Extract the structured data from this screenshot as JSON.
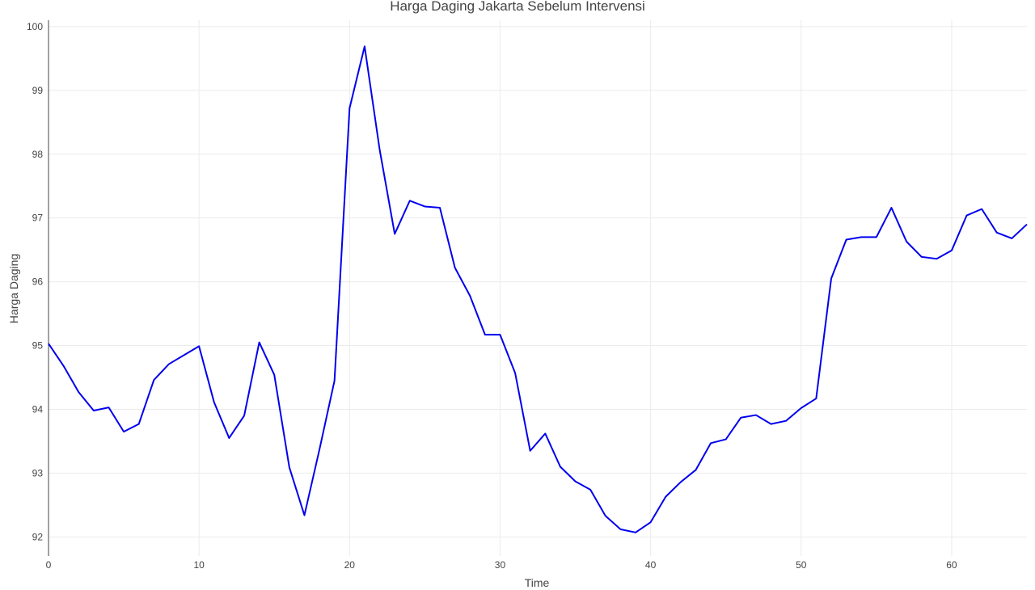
{
  "chart_data": {
    "type": "line",
    "title": "Harga Daging Jakarta Sebelum Intervensi",
    "xlabel": "Time",
    "ylabel": "Harga Daging",
    "xlim": [
      0,
      65
    ],
    "ylim": [
      91.7,
      100.1
    ],
    "grid": true,
    "x_ticks": [
      0,
      10,
      20,
      30,
      40,
      50,
      60
    ],
    "y_ticks": [
      92,
      93,
      94,
      95,
      96,
      97,
      98,
      99,
      100
    ],
    "line_color": "#0000ee",
    "series": [
      {
        "x": [
          0,
          1,
          2,
          3,
          4,
          5,
          6,
          7,
          8,
          9,
          10,
          11,
          12,
          13,
          14,
          15,
          16,
          17,
          18,
          19,
          20,
          21,
          22,
          23,
          24,
          25,
          26,
          27,
          28,
          29,
          30,
          31,
          32,
          33,
          34,
          35,
          36,
          37,
          38,
          39,
          40,
          41,
          42,
          43,
          44,
          45,
          46,
          47,
          48,
          49,
          50,
          51,
          52,
          53,
          54,
          55,
          56,
          57,
          58,
          59,
          60,
          61,
          62,
          63,
          64,
          65
        ],
        "values": [
          95.03,
          94.68,
          94.27,
          93.98,
          94.03,
          93.65,
          93.77,
          94.46,
          94.71,
          94.85,
          94.99,
          94.11,
          93.55,
          93.9,
          95.05,
          94.54,
          93.09,
          92.34,
          93.37,
          94.45,
          98.72,
          99.69,
          98.07,
          96.75,
          97.27,
          97.18,
          97.16,
          96.22,
          95.78,
          95.17,
          95.17,
          94.57,
          93.35,
          93.62,
          93.1,
          92.87,
          92.74,
          92.33,
          92.12,
          92.07,
          92.23,
          92.63,
          92.86,
          93.05,
          93.47,
          93.53,
          93.87,
          93.91,
          93.77,
          93.82,
          94.02,
          94.17,
          96.05,
          96.66,
          96.7,
          96.7,
          97.16,
          96.63,
          96.39,
          96.36,
          96.49,
          97.04,
          97.14,
          96.77,
          96.68,
          96.9
        ]
      }
    ]
  }
}
